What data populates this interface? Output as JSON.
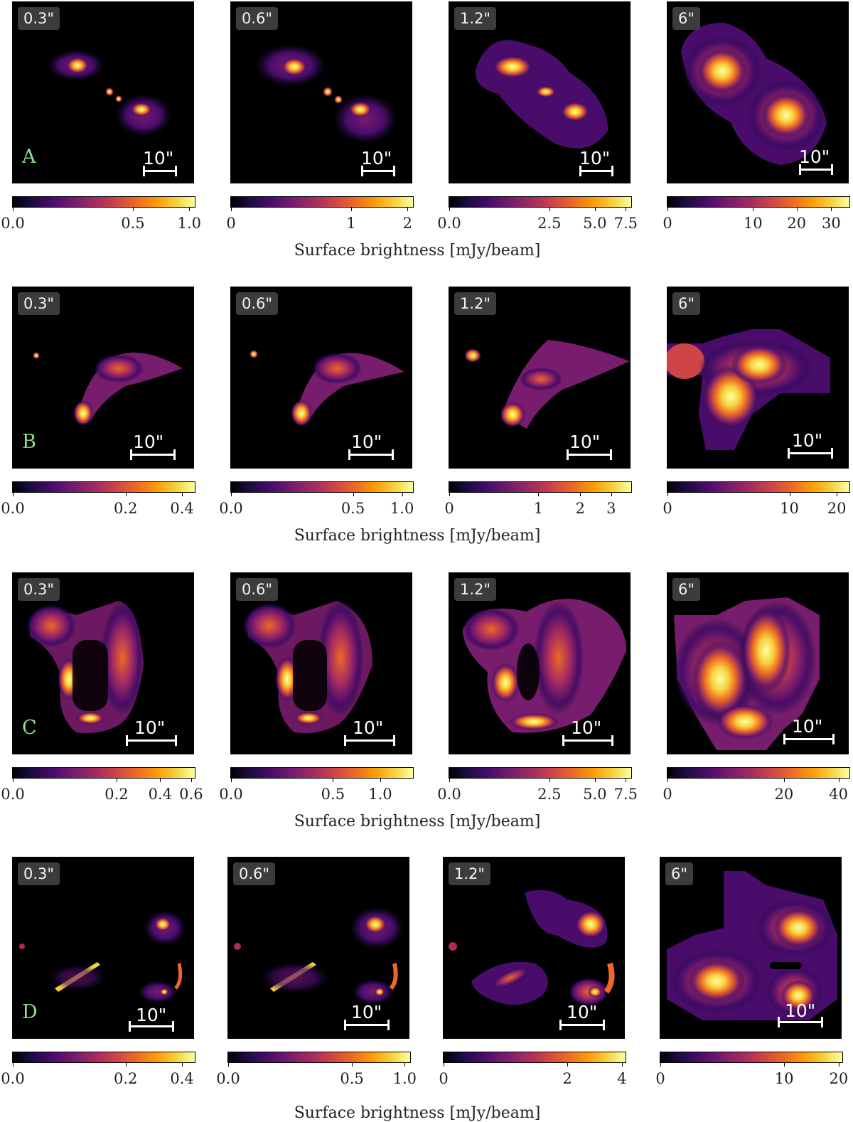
{
  "rows": [
    {
      "label": "A",
      "panels": [
        {
          "res": "0.3\"",
          "scalebar": "10\"",
          "cbar_ticks": [
            {
              "label": "0.0",
              "f": 0.0
            },
            {
              "label": "0.5",
              "f": 0.66
            },
            {
              "label": "1.0",
              "f": 0.97
            }
          ]
        },
        {
          "res": "0.6\"",
          "scalebar": "10\"",
          "cbar_ticks": [
            {
              "label": "0",
              "f": 0.0
            },
            {
              "label": "1",
              "f": 0.66
            },
            {
              "label": "2",
              "f": 0.97
            }
          ]
        },
        {
          "res": "1.2\"",
          "scalebar": "10\"",
          "cbar_ticks": [
            {
              "label": "0.0",
              "f": 0.0
            },
            {
              "label": "2.5",
              "f": 0.55
            },
            {
              "label": "5.0",
              "f": 0.8
            },
            {
              "label": "7.5",
              "f": 0.97
            }
          ]
        },
        {
          "res": "6\"",
          "scalebar": "10\"",
          "cbar_ticks": [
            {
              "label": "0",
              "f": 0.0
            },
            {
              "label": "10",
              "f": 0.47
            },
            {
              "label": "20",
              "f": 0.71
            },
            {
              "label": "30",
              "f": 0.9
            }
          ]
        }
      ]
    },
    {
      "label": "B",
      "panels": [
        {
          "res": "0.3\"",
          "scalebar": "10\"",
          "cbar_ticks": [
            {
              "label": "0.0",
              "f": 0.0
            },
            {
              "label": "0.2",
              "f": 0.62
            },
            {
              "label": "0.4",
              "f": 0.93
            }
          ]
        },
        {
          "res": "0.6\"",
          "scalebar": "10\"",
          "cbar_ticks": [
            {
              "label": "0.0",
              "f": 0.0
            },
            {
              "label": "0.5",
              "f": 0.67
            },
            {
              "label": "1.0",
              "f": 0.94
            }
          ]
        },
        {
          "res": "1.2\"",
          "scalebar": "10\"",
          "cbar_ticks": [
            {
              "label": "0",
              "f": 0.0
            },
            {
              "label": "1",
              "f": 0.49
            },
            {
              "label": "2",
              "f": 0.72
            },
            {
              "label": "3",
              "f": 0.89
            }
          ]
        },
        {
          "res": "6\"",
          "scalebar": "10\"",
          "cbar_ticks": [
            {
              "label": "0",
              "f": 0.0
            },
            {
              "label": "10",
              "f": 0.67
            },
            {
              "label": "20",
              "f": 0.93
            }
          ]
        }
      ]
    },
    {
      "label": "C",
      "panels": [
        {
          "res": "0.3\"",
          "scalebar": "10\"",
          "cbar_ticks": [
            {
              "label": "0.0",
              "f": 0.0
            },
            {
              "label": "0.2",
              "f": 0.57
            },
            {
              "label": "0.4",
              "f": 0.81
            },
            {
              "label": "0.6",
              "f": 0.98
            }
          ]
        },
        {
          "res": "0.6\"",
          "scalebar": "10\"",
          "cbar_ticks": [
            {
              "label": "0.0",
              "f": 0.0
            },
            {
              "label": "0.5",
              "f": 0.56
            },
            {
              "label": "1.0",
              "f": 0.82
            }
          ]
        },
        {
          "res": "1.2\"",
          "scalebar": "10\"",
          "cbar_ticks": [
            {
              "label": "0.0",
              "f": 0.0
            },
            {
              "label": "2.5",
              "f": 0.55
            },
            {
              "label": "5.0",
              "f": 0.8
            },
            {
              "label": "7.5",
              "f": 0.97
            }
          ]
        },
        {
          "res": "6\"",
          "scalebar": "10\"",
          "cbar_ticks": [
            {
              "label": "0",
              "f": 0.0
            },
            {
              "label": "20",
              "f": 0.64
            },
            {
              "label": "40",
              "f": 0.94
            }
          ]
        }
      ]
    },
    {
      "label": "D",
      "panels": [
        {
          "res": "0.3\"",
          "scalebar": "10\"",
          "cbar_ticks": [
            {
              "label": "0.0",
              "f": 0.0
            },
            {
              "label": "0.2",
              "f": 0.62
            },
            {
              "label": "0.4",
              "f": 0.93
            }
          ]
        },
        {
          "res": "0.6\"",
          "scalebar": "10\"",
          "cbar_ticks": [
            {
              "label": "0.0",
              "f": 0.0
            },
            {
              "label": "0.5",
              "f": 0.68
            },
            {
              "label": "1.0",
              "f": 0.97
            }
          ]
        },
        {
          "res": "1.2\"",
          "scalebar": "10\"",
          "cbar_ticks": [
            {
              "label": "0",
              "f": 0.0
            },
            {
              "label": "2",
              "f": 0.68
            },
            {
              "label": "4",
              "f": 0.98
            }
          ]
        },
        {
          "res": "6\"",
          "scalebar": "10\"",
          "cbar_ticks": [
            {
              "label": "0",
              "f": 0.0
            },
            {
              "label": "10",
              "f": 0.68
            },
            {
              "label": "20",
              "f": 0.98
            }
          ]
        }
      ]
    }
  ],
  "colorbar_title": "Surface brightness [mJy/beam]",
  "colormap": [
    "#000004",
    "#4a0c6b",
    "#a52c60",
    "#ed6925",
    "#f7d13d",
    "#fcffa4"
  ]
}
